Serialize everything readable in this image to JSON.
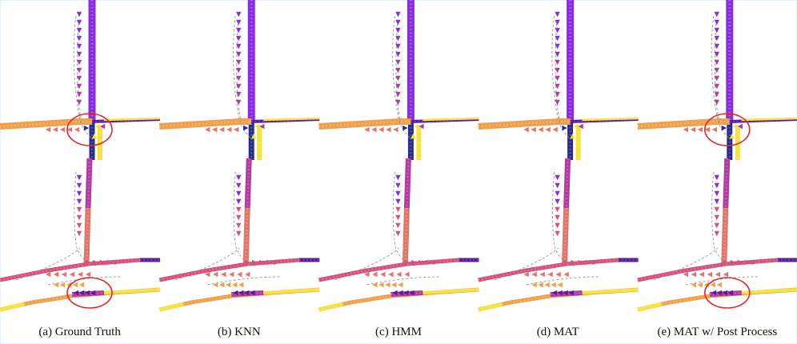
{
  "figure": {
    "panels": [
      {
        "id": "gt",
        "caption": "(a) Ground Truth",
        "highlighted": true
      },
      {
        "id": "knn",
        "caption": "(b) KNN",
        "highlighted": false
      },
      {
        "id": "hmm",
        "caption": "(c) HMM",
        "highlighted": false
      },
      {
        "id": "mat",
        "caption": "(d) MAT",
        "highlighted": false
      },
      {
        "id": "matp",
        "caption": "(e) MAT w/ Post Process",
        "highlighted": true
      }
    ],
    "colors": {
      "purple": "#8a2be2",
      "deep_purple": "#5b1a9c",
      "navy": "#2a2a8a",
      "magenta": "#b23aa0",
      "pink": "#d6507a",
      "salmon": "#e0766a",
      "orange": "#f0a04a",
      "light_orange": "#f5b55a",
      "yellow": "#f7e23a",
      "red_circle": "#e0282d",
      "dashed_gray": "#8a8a8a"
    }
  }
}
